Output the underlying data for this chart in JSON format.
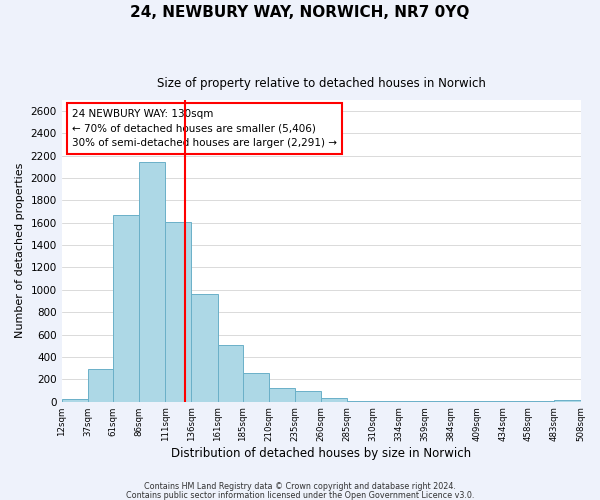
{
  "title": "24, NEWBURY WAY, NORWICH, NR7 0YQ",
  "subtitle": "Size of property relative to detached houses in Norwich",
  "xlabel": "Distribution of detached houses by size in Norwich",
  "ylabel": "Number of detached properties",
  "bar_left_edges": [
    12,
    37,
    61,
    86,
    111,
    136,
    161,
    185,
    210,
    235,
    260,
    285,
    310,
    334,
    359,
    384,
    409,
    434,
    458,
    483
  ],
  "bar_heights": [
    20,
    295,
    1670,
    2140,
    1610,
    960,
    505,
    255,
    120,
    95,
    35,
    10,
    10,
    5,
    5,
    5,
    3,
    2,
    2,
    15
  ],
  "bar_widths": [
    25,
    24,
    25,
    25,
    25,
    25,
    24,
    25,
    25,
    25,
    25,
    25,
    24,
    25,
    25,
    25,
    25,
    24,
    25,
    25
  ],
  "bar_color": "#add8e6",
  "bar_edgecolor": "#6ab0c8",
  "vline_x": 130,
  "vline_color": "red",
  "annotation_title": "24 NEWBURY WAY: 130sqm",
  "annotation_line1": "← 70% of detached houses are smaller (5,406)",
  "annotation_line2": "30% of semi-detached houses are larger (2,291) →",
  "tick_labels": [
    "12sqm",
    "37sqm",
    "61sqm",
    "86sqm",
    "111sqm",
    "136sqm",
    "161sqm",
    "185sqm",
    "210sqm",
    "235sqm",
    "260sqm",
    "285sqm",
    "310sqm",
    "334sqm",
    "359sqm",
    "384sqm",
    "409sqm",
    "434sqm",
    "458sqm",
    "483sqm",
    "508sqm"
  ],
  "ylim": [
    0,
    2700
  ],
  "yticks": [
    0,
    200,
    400,
    600,
    800,
    1000,
    1200,
    1400,
    1600,
    1800,
    2000,
    2200,
    2400,
    2600
  ],
  "footer1": "Contains HM Land Registry data © Crown copyright and database right 2024.",
  "footer2": "Contains public sector information licensed under the Open Government Licence v3.0.",
  "background_color": "#eef2fb",
  "plot_bg_color": "#ffffff"
}
